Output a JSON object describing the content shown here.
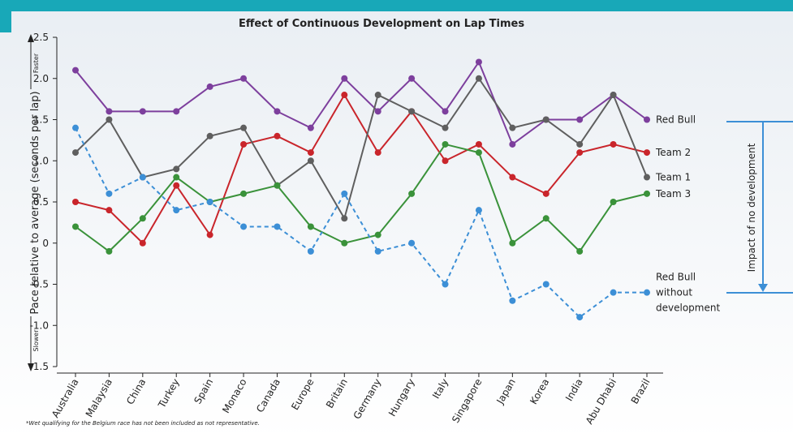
{
  "chart_data": {
    "type": "line",
    "title": "Effect of Continuous Development on Lap Times",
    "y_label": "Pace relative to average (seconds per lap)",
    "y_top_note": "Faster",
    "y_bottom_note": "Slower",
    "annotation": "Impact of no development",
    "footnote": "*Wet qualifying for the Belgium race has not been included as not representative.",
    "categories": [
      "Australia",
      "Malaysia",
      "China",
      "Turkey",
      "Spain",
      "Monaco",
      "Canada",
      "Europe",
      "Britain",
      "Germany",
      "Hungary",
      "Italy",
      "Singapore",
      "Japan",
      "Korea",
      "India",
      "Abu Dhabi",
      "Brazil"
    ],
    "ylim": [
      -1.5,
      2.5
    ],
    "yticks": [
      2.5,
      {
        "value": 2,
        "label": "2.0"
      },
      1.5,
      {
        "value": 1,
        "label": "1.0"
      },
      0.5,
      0,
      -0.5,
      {
        "value": -1,
        "label": "-1.0"
      },
      -1.5
    ],
    "series": [
      {
        "name": "Red Bull",
        "color": "#7d3f9d",
        "dashed": false,
        "values": [
          2.1,
          1.6,
          1.6,
          1.6,
          1.9,
          2.0,
          1.6,
          1.4,
          2.0,
          1.6,
          2.0,
          1.6,
          2.2,
          1.2,
          1.5,
          1.5,
          1.8,
          1.5
        ]
      },
      {
        "name": "Team 2",
        "color": "#c9252b",
        "dashed": false,
        "values": [
          0.5,
          0.4,
          0.0,
          0.7,
          0.1,
          1.2,
          1.3,
          1.1,
          1.8,
          1.1,
          1.6,
          1.0,
          1.2,
          0.8,
          0.6,
          1.1,
          1.2,
          1.1
        ]
      },
      {
        "name": "Team 1",
        "color": "#5f5f5f",
        "dashed": false,
        "values": [
          1.1,
          1.5,
          0.8,
          0.9,
          1.3,
          1.4,
          0.7,
          1.0,
          0.3,
          1.8,
          1.6,
          1.4,
          2.0,
          1.4,
          1.5,
          1.2,
          1.8,
          0.8
        ]
      },
      {
        "name": "Team 3",
        "color": "#3a923a",
        "dashed": false,
        "values": [
          0.2,
          -0.1,
          0.3,
          0.8,
          0.5,
          0.6,
          0.7,
          0.2,
          0.0,
          0.1,
          0.6,
          1.2,
          1.1,
          0.0,
          0.3,
          -0.1,
          0.5,
          0.6
        ]
      },
      {
        "name": "Red Bull without development",
        "color": "#3c8fd6",
        "dashed": true,
        "values": [
          1.4,
          0.6,
          0.8,
          0.4,
          0.5,
          0.2,
          0.2,
          -0.1,
          0.6,
          -0.1,
          0.0,
          -0.5,
          0.4,
          -0.7,
          -0.5,
          -0.9,
          -0.6,
          -0.6
        ]
      }
    ]
  }
}
